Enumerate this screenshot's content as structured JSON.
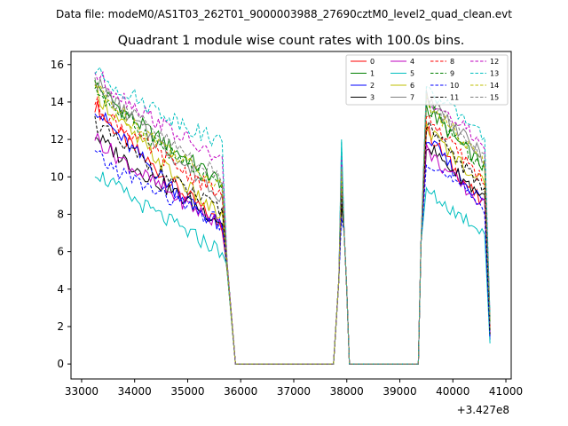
{
  "chart_data": {
    "type": "line",
    "suptitle": "Data file: modeM0/AS1T03_262T01_9000003988_27690cztM0_level2_quad_clean.evt",
    "title": "Quadrant 1 module wise count rates with 100.0s bins.",
    "xlabel": "",
    "ylabel": "",
    "x_offset_label": "+3.427e8",
    "xlim": [
      32800,
      41100
    ],
    "ylim": [
      -0.8,
      16.7
    ],
    "x_ticks": [
      33000,
      34000,
      35000,
      36000,
      37000,
      38000,
      39000,
      40000,
      41000
    ],
    "x_tick_labels": [
      "33000",
      "34000",
      "35000",
      "36000",
      "37000",
      "38000",
      "39000",
      "40000",
      "41000"
    ],
    "y_ticks": [
      0,
      2,
      4,
      6,
      8,
      10,
      12,
      14,
      16
    ],
    "y_tick_labels": [
      "0",
      "2",
      "4",
      "6",
      "8",
      "10",
      "12",
      "14",
      "16"
    ],
    "legend_position": "top-right",
    "segments": [
      {
        "kind": "decay",
        "t0": 33250,
        "t1": 35650
      },
      {
        "kind": "drop",
        "t": 35750,
        "v": 5.0
      },
      {
        "kind": "point",
        "t": 35900,
        "v": 0
      },
      {
        "kind": "point",
        "t": 37750,
        "v": 0
      },
      {
        "kind": "point",
        "t": 37850,
        "v": 4.5
      },
      {
        "kind": "peak",
        "t": 37900
      },
      {
        "kind": "point",
        "t": 37950,
        "v": 7.0
      },
      {
        "kind": "point",
        "t": 38000,
        "v": 4.0
      },
      {
        "kind": "point",
        "t": 38050,
        "v": 0
      },
      {
        "kind": "point",
        "t": 39350,
        "v": 0
      },
      {
        "kind": "point",
        "t": 39400,
        "v": 6.5
      },
      {
        "kind": "decay2",
        "t0": 39500,
        "t1": 40600
      },
      {
        "kind": "end",
        "t": 40700
      }
    ],
    "series": [
      {
        "name": "0",
        "color": "#ff0000",
        "dash": "solid",
        "start": 13.9,
        "mid": 7.4,
        "peak": 10.6,
        "start2": 12.6,
        "end2": 8.4,
        "endv": 1.6
      },
      {
        "name": "1",
        "color": "#008000",
        "dash": "solid",
        "start": 15.0,
        "mid": 9.7,
        "peak": 11.0,
        "start2": 13.8,
        "end2": 10.5,
        "endv": 2.4
      },
      {
        "name": "2",
        "color": "#0000ff",
        "dash": "solid",
        "start": 13.8,
        "mid": 7.2,
        "peak": 9.2,
        "start2": 12.2,
        "end2": 8.6,
        "endv": 1.3
      },
      {
        "name": "3",
        "color": "#000000",
        "dash": "solid",
        "start": 12.3,
        "mid": 7.6,
        "peak": 8.5,
        "start2": 11.8,
        "end2": 8.9,
        "endv": 1.5
      },
      {
        "name": "4",
        "color": "#bf00bf",
        "dash": "solid",
        "start": 12.2,
        "mid": 7.4,
        "peak": 10.8,
        "start2": 11.5,
        "end2": 8.4,
        "endv": 1.7
      },
      {
        "name": "5",
        "color": "#00bfbf",
        "dash": "solid",
        "start": 10.4,
        "mid": 6.0,
        "peak": 12.0,
        "start2": 9.3,
        "end2": 7.1,
        "endv": 1.1
      },
      {
        "name": "6",
        "color": "#bfbf00",
        "dash": "solid",
        "start": 14.7,
        "mid": 7.8,
        "peak": 10.3,
        "start2": 12.7,
        "end2": 9.6,
        "endv": 1.8
      },
      {
        "name": "7",
        "color": "#808080",
        "dash": "solid",
        "start": 15.3,
        "mid": 9.0,
        "peak": 9.5,
        "start2": 14.5,
        "end2": 11.0,
        "endv": 2.0
      },
      {
        "name": "8",
        "color": "#ff0000",
        "dash": "dashed",
        "start": 14.0,
        "mid": 9.0,
        "peak": 9.8,
        "start2": 13.4,
        "end2": 9.8,
        "endv": 1.9
      },
      {
        "name": "9",
        "color": "#008000",
        "dash": "dashed",
        "start": 14.8,
        "mid": 9.3,
        "peak": 10.1,
        "start2": 14.0,
        "end2": 10.4,
        "endv": 2.2
      },
      {
        "name": "10",
        "color": "#0000ff",
        "dash": "dashed",
        "start": 11.2,
        "mid": 7.5,
        "peak": 7.8,
        "start2": 11.0,
        "end2": 8.4,
        "endv": 1.4
      },
      {
        "name": "11",
        "color": "#000000",
        "dash": "dashed",
        "start": 13.0,
        "mid": 8.1,
        "peak": 9.0,
        "start2": 12.8,
        "end2": 9.4,
        "endv": 1.6
      },
      {
        "name": "12",
        "color": "#bf00bf",
        "dash": "dashed",
        "start": 15.6,
        "mid": 10.8,
        "peak": 11.1,
        "start2": 14.4,
        "end2": 11.7,
        "endv": 2.5
      },
      {
        "name": "13",
        "color": "#00bfbf",
        "dash": "dashed",
        "start": 15.7,
        "mid": 11.8,
        "peak": 11.9,
        "start2": 14.7,
        "end2": 12.3,
        "endv": 2.6
      },
      {
        "name": "14",
        "color": "#bfbf00",
        "dash": "dashed",
        "start": 14.9,
        "mid": 9.5,
        "peak": 10.4,
        "start2": 14.2,
        "end2": 10.7,
        "endv": 2.3
      },
      {
        "name": "15",
        "color": "#808080",
        "dash": "dashed",
        "start": 15.2,
        "mid": 9.9,
        "peak": 10.5,
        "start2": 14.3,
        "end2": 11.1,
        "endv": 2.1
      }
    ]
  }
}
